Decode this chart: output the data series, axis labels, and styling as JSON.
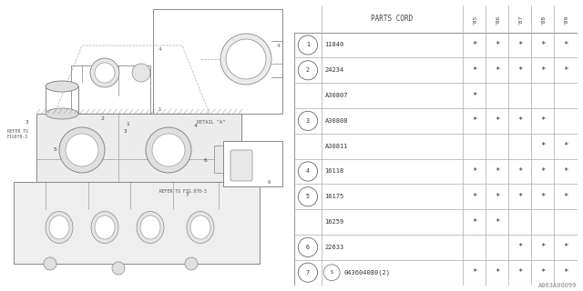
{
  "figure_id": "A063A00099",
  "bg_color": "#ffffff",
  "line_color": "#888888",
  "table": {
    "year_cols": [
      "'85",
      "'86",
      "'87",
      "'88",
      "'89"
    ],
    "rows": [
      {
        "num": "1",
        "part": "11840",
        "years": [
          "*",
          "*",
          "*",
          "*",
          "*"
        ]
      },
      {
        "num": "2",
        "part": "24234",
        "years": [
          "*",
          "*",
          "*",
          "*",
          "*"
        ]
      },
      {
        "num": "",
        "part": "A30807",
        "years": [
          "*",
          "",
          "",
          "",
          ""
        ]
      },
      {
        "num": "3",
        "part": "A30808",
        "years": [
          "*",
          "*",
          "*",
          "*",
          ""
        ]
      },
      {
        "num": "",
        "part": "A30811",
        "years": [
          "",
          "",
          "",
          "*",
          "*"
        ]
      },
      {
        "num": "4",
        "part": "16118",
        "years": [
          "*",
          "*",
          "*",
          "*",
          "*"
        ]
      },
      {
        "num": "5",
        "part": "16175",
        "years": [
          "*",
          "*",
          "*",
          "*",
          "*"
        ]
      },
      {
        "num": "",
        "part": "16259",
        "years": [
          "*",
          "*",
          "",
          "",
          ""
        ]
      },
      {
        "num": "6",
        "part": "22633",
        "years": [
          "",
          "",
          "*",
          "*",
          "*"
        ]
      },
      {
        "num": "7",
        "part": "S043604080(2)",
        "years": [
          "*",
          "*",
          "*",
          "*",
          "*"
        ]
      }
    ]
  }
}
